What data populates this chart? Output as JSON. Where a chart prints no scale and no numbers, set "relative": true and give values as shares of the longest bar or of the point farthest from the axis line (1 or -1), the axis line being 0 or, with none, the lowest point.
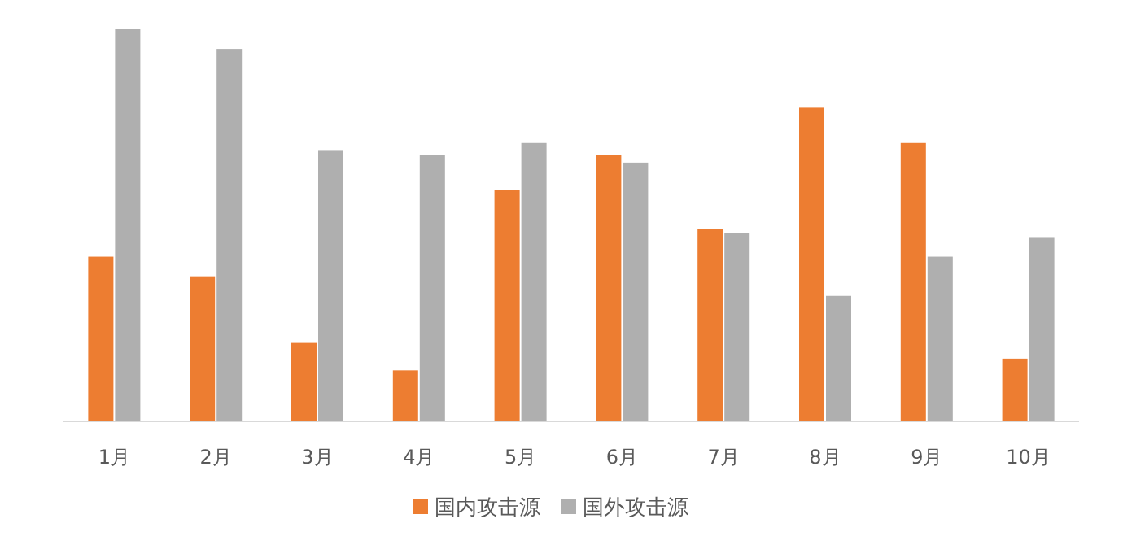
{
  "chart_data": {
    "type": "bar",
    "relative": true,
    "legend": "bottom",
    "categories": [
      "1月",
      "2月",
      "3月",
      "4月",
      "5月",
      "6月",
      "7月",
      "8月",
      "9月",
      "10月"
    ],
    "series": [
      {
        "name": "国内攻击源",
        "color": "#ed7d31",
        "values": [
          0.42,
          0.37,
          0.2,
          0.13,
          0.59,
          0.68,
          0.49,
          0.8,
          0.71,
          0.16
        ]
      },
      {
        "name": "国外攻击源",
        "color": "#afafaf",
        "values": [
          1,
          0.95,
          0.69,
          0.68,
          0.71,
          0.66,
          0.48,
          0.32,
          0.42,
          0.47
        ]
      }
    ]
  }
}
